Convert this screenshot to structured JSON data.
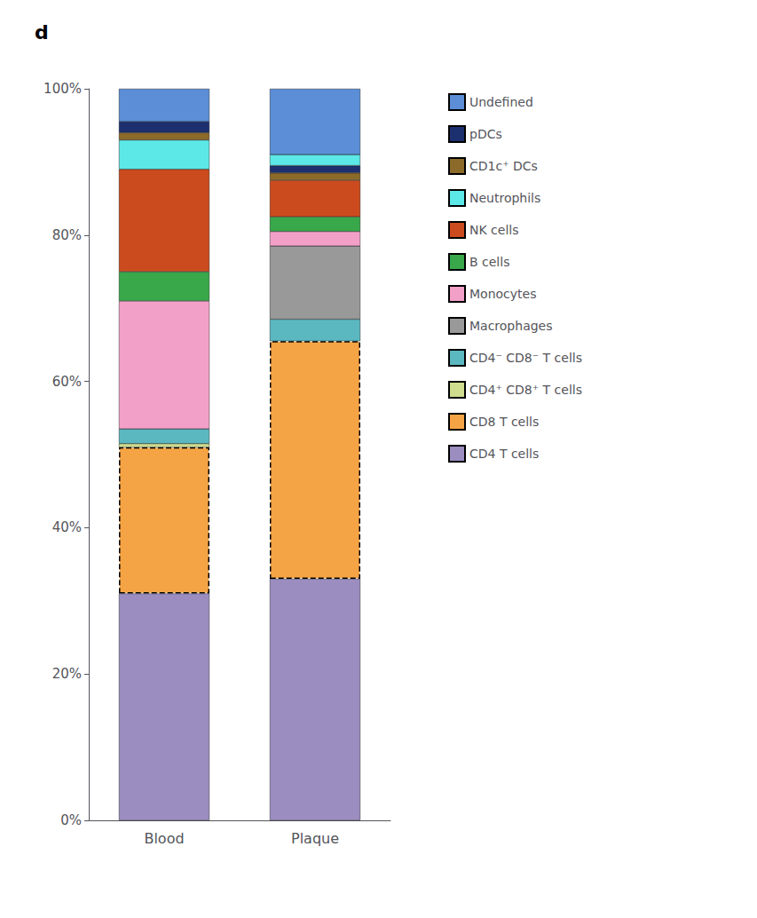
{
  "chart_data": {
    "type": "bar",
    "title": "d",
    "categories": [
      "Blood",
      "Plaque"
    ],
    "stacked": true,
    "series": [
      {
        "name": "CD4 T cells",
        "color": "#9B8DC0",
        "values": [
          0.31,
          0.33
        ]
      },
      {
        "name": "CD8 T cells",
        "color": "#F5A445",
        "values": [
          0.2,
          0.325
        ],
        "line_style": "dashed"
      },
      {
        "name": "CD4⁺ CD8⁺ T cells",
        "color": "#CEDD8E",
        "values": [
          0.005,
          null
        ]
      },
      {
        "name": "CD4⁻ CD8⁻ T cells",
        "color": "#5BB8C0",
        "values": [
          0.02,
          0.03
        ]
      },
      {
        "name": "Macrophages",
        "color": "#999999",
        "values": [
          null,
          0.1
        ]
      },
      {
        "name": "Monocytes",
        "color": "#F2A0C8",
        "values": [
          0.175,
          0.02
        ]
      },
      {
        "name": "B cells",
        "color": "#38A84A",
        "values": [
          0.04,
          0.02
        ]
      },
      {
        "name": "NK cells",
        "color": "#CC4B1E",
        "values": [
          0.14,
          0.05
        ]
      },
      {
        "name": "Neutrophils",
        "color": "#5DE8E8",
        "values": [
          0.04,
          null
        ]
      },
      {
        "name": "CD1c⁺ DCs",
        "color": "#8B6A2A",
        "values": [
          0.01,
          0.01
        ]
      },
      {
        "name": "pDCs",
        "color": "#1C2F6E",
        "values": [
          0.015,
          0.01
        ]
      },
      {
        "name": "Neutrophils",
        "color": "#5DE8E8",
        "values": [
          null,
          0.015
        ]
      },
      {
        "name": "Undefined",
        "color": "#5B8ED6",
        "values": [
          0.045,
          0.09
        ]
      }
    ],
    "ylim": [
      0,
      1.0
    ],
    "yticks": [
      {
        "value": 0,
        "label": "0%"
      },
      {
        "value": 0.2,
        "label": "20%"
      },
      {
        "value": 0.4,
        "label": "40%"
      },
      {
        "value": 0.6,
        "label": "60%"
      },
      {
        "value": 0.8,
        "label": "80%"
      },
      {
        "value": 1.0,
        "label": "100%"
      }
    ],
    "grid": false,
    "legend": "right"
  }
}
